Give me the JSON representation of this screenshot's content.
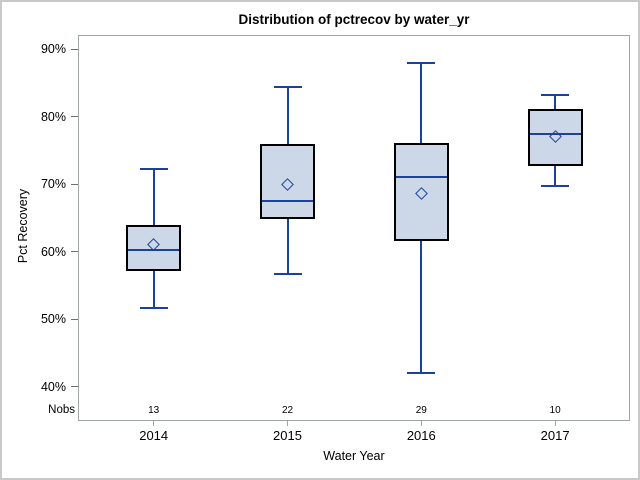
{
  "chart_data": {
    "type": "box",
    "title": "Distribution of pctrecov by water_yr",
    "xlabel": "Water Year",
    "ylabel": "Pct Recovery",
    "categories": [
      "2014",
      "2015",
      "2016",
      "2017"
    ],
    "nobs_header": "Nobs",
    "y_ticks": [
      40,
      50,
      60,
      70,
      80,
      90
    ],
    "y_tick_suffix": "%",
    "ylim": [
      34.9,
      92.1
    ],
    "grid": false,
    "legend": false,
    "mean_marker_shape": "diamond",
    "series": [
      {
        "category": "2014",
        "nobs": 13,
        "whisker_low": 51.7,
        "q1": 57.2,
        "median": 60.2,
        "q3": 63.9,
        "whisker_high": 72.2,
        "mean": 61.0
      },
      {
        "category": "2015",
        "nobs": 22,
        "whisker_low": 56.7,
        "q1": 64.8,
        "median": 67.5,
        "q3": 76.0,
        "whisker_high": 84.4,
        "mean": 70.0
      },
      {
        "category": "2016",
        "nobs": 29,
        "whisker_low": 42.0,
        "q1": 61.6,
        "median": 71.0,
        "q3": 76.1,
        "whisker_high": 87.9,
        "mean": 68.6
      },
      {
        "category": "2017",
        "nobs": 10,
        "whisker_low": 69.7,
        "q1": 72.7,
        "median": 77.5,
        "q3": 81.2,
        "whisker_high": 83.2,
        "mean": 77.0
      }
    ],
    "colors": {
      "box_fill": "#CCD7E7",
      "box_border": "#000000",
      "line": "#1A4298",
      "frame": "#9FA5A5",
      "tick": "#6E6E6E",
      "text": "#000000",
      "background": "#FFFFFF",
      "page_border": "#C9C9C9"
    }
  }
}
